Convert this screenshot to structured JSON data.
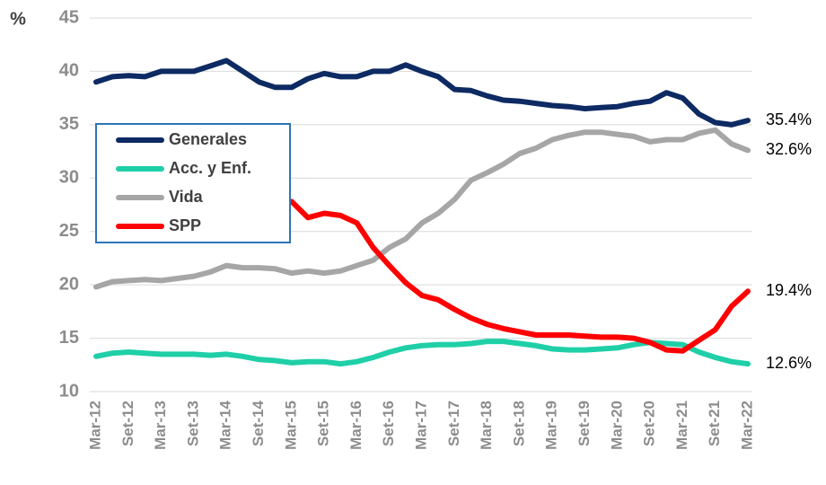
{
  "chart_data": {
    "type": "line",
    "y_label": "%",
    "categories": [
      "Mar-12",
      null,
      "Set-12",
      null,
      "Mar-13",
      null,
      "Set-13",
      null,
      "Mar-14",
      null,
      "Set-14",
      null,
      "Mar-15",
      null,
      "Set-15",
      null,
      "Mar-16",
      null,
      "Set-16",
      null,
      "Mar-17",
      null,
      "Set-17",
      null,
      "Mar-18",
      null,
      "Set-18",
      null,
      "Mar-19",
      null,
      "Set-19",
      null,
      "Mar-20",
      null,
      "Set-20",
      null,
      "Mar-21",
      null,
      "Set-21",
      null,
      "Mar-22"
    ],
    "series": [
      {
        "name": "Generales",
        "color": "#0d2a63",
        "values": [
          39,
          39.5,
          39.6,
          39.5,
          40,
          40,
          40,
          40.5,
          41,
          40,
          39,
          38.5,
          38.5,
          39.3,
          39.8,
          39.5,
          39.5,
          40,
          40,
          40.6,
          40,
          39.5,
          38.3,
          38.2,
          37.7,
          37.3,
          37.2,
          37,
          36.8,
          36.7,
          36.5,
          36.6,
          36.7,
          37,
          37.2,
          38,
          37.5,
          36,
          35.2,
          35,
          35.4
        ],
        "value_labels": [
          null,
          null,
          null,
          null,
          null,
          null,
          null,
          null,
          null,
          null,
          null,
          null,
          null,
          null,
          null,
          null,
          null,
          null,
          null,
          null,
          null,
          null,
          null,
          null,
          null,
          null,
          null,
          null,
          null,
          null,
          null,
          null,
          null,
          null,
          null,
          null,
          null,
          null,
          null,
          null,
          "35.4%"
        ]
      },
      {
        "name": "Acc. y Enf.",
        "color": "#1fcfa8",
        "values": [
          13.3,
          13.6,
          13.7,
          13.6,
          13.5,
          13.5,
          13.5,
          13.4,
          13.5,
          13.3,
          13,
          12.9,
          12.7,
          12.8,
          12.8,
          12.6,
          12.8,
          13.2,
          13.7,
          14.1,
          14.3,
          14.4,
          14.4,
          14.5,
          14.7,
          14.7,
          14.5,
          14.3,
          14,
          13.9,
          13.9,
          14,
          14.1,
          14.4,
          14.6,
          14.5,
          14.4,
          13.7,
          13.2,
          12.8,
          12.6
        ],
        "value_labels": [
          null,
          null,
          null,
          null,
          null,
          null,
          null,
          null,
          null,
          null,
          null,
          null,
          null,
          null,
          null,
          null,
          null,
          null,
          null,
          null,
          null,
          null,
          null,
          null,
          null,
          null,
          null,
          null,
          null,
          null,
          null,
          null,
          null,
          null,
          null,
          null,
          null,
          null,
          null,
          null,
          "12.6%"
        ]
      },
      {
        "name": "Vida",
        "color": "#a6a6a6",
        "values": [
          19.8,
          20.3,
          20.4,
          20.5,
          20.4,
          20.6,
          20.8,
          21.2,
          21.8,
          21.6,
          21.6,
          21.5,
          21.1,
          21.3,
          21.1,
          21.3,
          21.8,
          22.3,
          23.5,
          24.3,
          25.8,
          26.7,
          28,
          29.8,
          30.5,
          31.3,
          32.3,
          32.8,
          33.6,
          34,
          34.3,
          34.3,
          34.1,
          33.9,
          33.4,
          33.6,
          33.6,
          34.2,
          34.5,
          33.2,
          32.6
        ],
        "value_labels": [
          null,
          null,
          null,
          null,
          null,
          null,
          null,
          null,
          null,
          null,
          null,
          null,
          null,
          null,
          null,
          null,
          null,
          null,
          null,
          null,
          null,
          null,
          null,
          null,
          null,
          null,
          null,
          null,
          null,
          null,
          null,
          null,
          null,
          null,
          null,
          null,
          null,
          null,
          null,
          null,
          "32.6%"
        ]
      },
      {
        "name": "SPP",
        "color": "#ff0000",
        "values": [
          null,
          null,
          null,
          null,
          null,
          null,
          null,
          null,
          null,
          null,
          null,
          null,
          27.8,
          26.3,
          26.7,
          26.5,
          25.8,
          23.5,
          21.8,
          20.2,
          19,
          18.6,
          17.7,
          16.9,
          16.3,
          15.9,
          15.6,
          15.3,
          15.3,
          15.3,
          15.2,
          15.1,
          15.1,
          15,
          14.6,
          13.9,
          13.8,
          14.8,
          15.8,
          18,
          19.4
        ],
        "value_labels": [
          null,
          null,
          null,
          null,
          null,
          null,
          null,
          null,
          null,
          null,
          null,
          null,
          null,
          null,
          null,
          null,
          null,
          null,
          null,
          null,
          null,
          null,
          null,
          null,
          null,
          null,
          null,
          null,
          null,
          null,
          null,
          null,
          null,
          null,
          null,
          null,
          null,
          null,
          null,
          null,
          "19.4%"
        ]
      }
    ],
    "ylim": [
      10,
      45
    ],
    "yticks": [
      10,
      15,
      20,
      25,
      30,
      35,
      40,
      45
    ],
    "grid": true
  }
}
